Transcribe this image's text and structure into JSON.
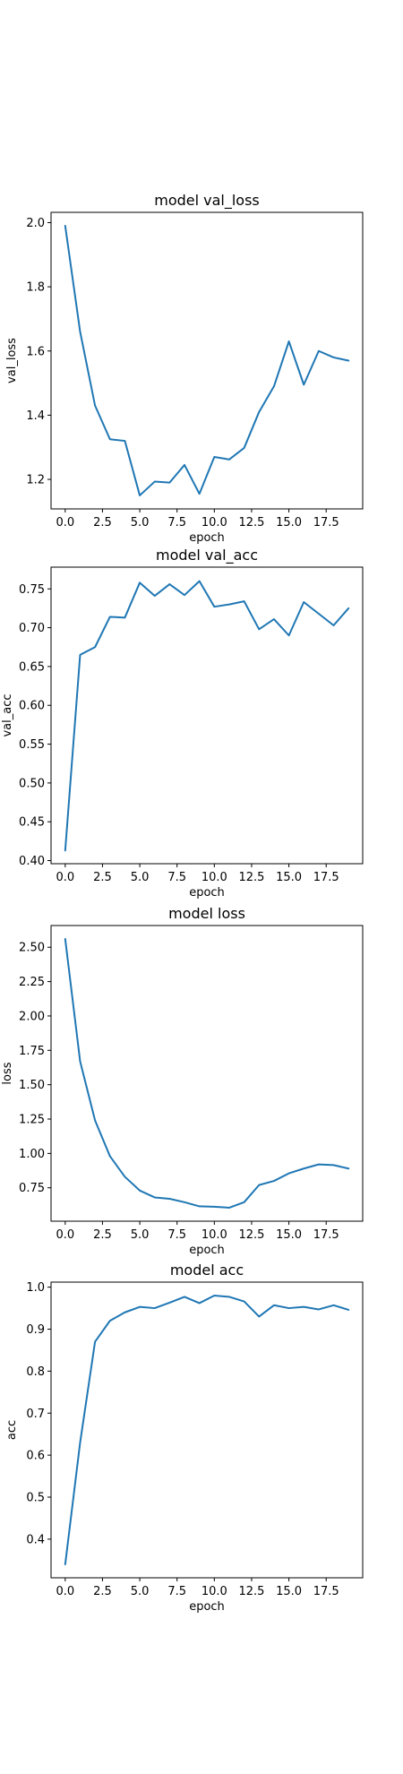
{
  "chart_data": [
    {
      "type": "line",
      "title": "model val_loss",
      "xlabel": "epoch",
      "ylabel": "val_loss",
      "x": [
        0,
        1,
        2,
        3,
        4,
        5,
        6,
        7,
        8,
        9,
        10,
        11,
        12,
        13,
        14,
        15,
        16,
        17,
        18,
        19
      ],
      "series": [
        {
          "values": [
            1.99,
            1.66,
            1.43,
            1.325,
            1.32,
            1.15,
            1.193,
            1.19,
            1.245,
            1.155,
            1.27,
            1.262,
            1.298,
            1.41,
            1.49,
            1.63,
            1.495,
            1.6,
            1.58,
            1.57
          ]
        }
      ],
      "xticks": [
        "0.0",
        "2.5",
        "5.0",
        "7.5",
        "10.0",
        "12.5",
        "15.0",
        "17.5"
      ],
      "xtick_values": [
        0,
        2.5,
        5,
        7.5,
        10,
        12.5,
        15,
        17.5
      ],
      "yticks": [
        "1.2",
        "1.4",
        "1.6",
        "1.8",
        "2.0"
      ],
      "ytick_values": [
        1.2,
        1.4,
        1.6,
        1.8,
        2.0
      ],
      "xlim": [
        -0.95,
        19.95
      ],
      "ylim": [
        1.108,
        2.032
      ],
      "grid": false,
      "color": "#1f77b4"
    },
    {
      "type": "line",
      "title": "model val_acc",
      "xlabel": "epoch",
      "ylabel": "val_acc",
      "x": [
        0,
        1,
        2,
        3,
        4,
        5,
        6,
        7,
        8,
        9,
        10,
        11,
        12,
        13,
        14,
        15,
        16,
        17,
        18,
        19
      ],
      "series": [
        {
          "values": [
            0.413,
            0.665,
            0.675,
            0.714,
            0.713,
            0.758,
            0.741,
            0.756,
            0.742,
            0.76,
            0.727,
            0.73,
            0.734,
            0.698,
            0.711,
            0.69,
            0.733,
            0.718,
            0.703,
            0.725
          ]
        }
      ],
      "xticks": [
        "0.0",
        "2.5",
        "5.0",
        "7.5",
        "10.0",
        "12.5",
        "15.0",
        "17.5"
      ],
      "xtick_values": [
        0,
        2.5,
        5,
        7.5,
        10,
        12.5,
        15,
        17.5
      ],
      "yticks": [
        "0.40",
        "0.45",
        "0.50",
        "0.55",
        "0.60",
        "0.65",
        "0.70",
        "0.75"
      ],
      "ytick_values": [
        0.4,
        0.45,
        0.5,
        0.55,
        0.6,
        0.65,
        0.7,
        0.75
      ],
      "xlim": [
        -0.95,
        19.95
      ],
      "ylim": [
        0.396,
        0.778
      ],
      "grid": false,
      "color": "#1f77b4"
    },
    {
      "type": "line",
      "title": "model loss",
      "xlabel": "epoch",
      "ylabel": "loss",
      "x": [
        0,
        1,
        2,
        3,
        4,
        5,
        6,
        7,
        8,
        9,
        10,
        11,
        12,
        13,
        14,
        15,
        16,
        17,
        18,
        19
      ],
      "series": [
        {
          "values": [
            2.56,
            1.67,
            1.24,
            0.98,
            0.83,
            0.73,
            0.68,
            0.67,
            0.645,
            0.615,
            0.612,
            0.605,
            0.645,
            0.77,
            0.8,
            0.855,
            0.89,
            0.92,
            0.915,
            0.89
          ]
        }
      ],
      "xticks": [
        "0.0",
        "2.5",
        "5.0",
        "7.5",
        "10.0",
        "12.5",
        "15.0",
        "17.5"
      ],
      "xtick_values": [
        0,
        2.5,
        5,
        7.5,
        10,
        12.5,
        15,
        17.5
      ],
      "yticks": [
        "0.75",
        "1.00",
        "1.25",
        "1.50",
        "1.75",
        "2.00",
        "2.25",
        "2.50"
      ],
      "ytick_values": [
        0.75,
        1.0,
        1.25,
        1.5,
        1.75,
        2.0,
        2.25,
        2.5
      ],
      "xlim": [
        -0.95,
        19.95
      ],
      "ylim": [
        0.507,
        2.658
      ],
      "grid": false,
      "color": "#1f77b4"
    },
    {
      "type": "line",
      "title": "model acc",
      "xlabel": "epoch",
      "ylabel": "acc",
      "x": [
        0,
        1,
        2,
        3,
        4,
        5,
        6,
        7,
        8,
        9,
        10,
        11,
        12,
        13,
        14,
        15,
        16,
        17,
        18,
        19
      ],
      "series": [
        {
          "values": [
            0.34,
            0.63,
            0.87,
            0.92,
            0.94,
            0.953,
            0.95,
            0.963,
            0.977,
            0.962,
            0.98,
            0.977,
            0.966,
            0.93,
            0.957,
            0.95,
            0.953,
            0.947,
            0.957,
            0.946
          ]
        }
      ],
      "xticks": [
        "0.0",
        "2.5",
        "5.0",
        "7.5",
        "10.0",
        "12.5",
        "15.0",
        "17.5"
      ],
      "xtick_values": [
        0,
        2.5,
        5,
        7.5,
        10,
        12.5,
        15,
        17.5
      ],
      "yticks": [
        "0.4",
        "0.5",
        "0.6",
        "0.7",
        "0.8",
        "0.9",
        "1.0"
      ],
      "ytick_values": [
        0.4,
        0.5,
        0.6,
        0.7,
        0.8,
        0.9,
        1.0
      ],
      "xlim": [
        -0.95,
        19.95
      ],
      "ylim": [
        0.308,
        1.012
      ],
      "grid": false,
      "color": "#1f77b4"
    }
  ]
}
